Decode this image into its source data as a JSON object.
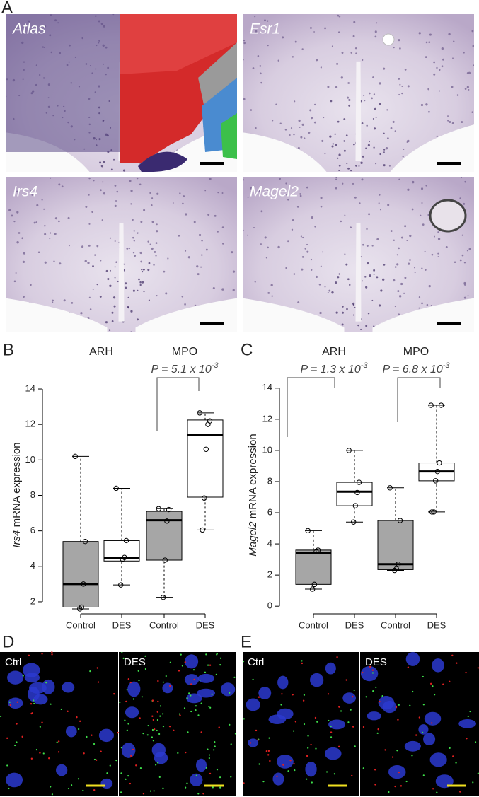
{
  "panel_letters": [
    "A",
    "B",
    "C",
    "D",
    "E"
  ],
  "histology": [
    {
      "label": "Atlas"
    },
    {
      "label": "Esr1"
    },
    {
      "label": "Irs4"
    },
    {
      "label": "Magel2"
    }
  ],
  "fluorescence": [
    {
      "labels": [
        "Ctrl",
        "DES"
      ]
    },
    {
      "labels": [
        "Ctrl",
        "DES"
      ]
    }
  ],
  "chart_data": [
    {
      "type": "box",
      "ylabel_gene": "Irs4",
      "ylabel": "mRNA expression",
      "groups": [
        "ARH",
        "MPO"
      ],
      "categories": [
        "Control",
        "DES",
        "Control",
        "DES"
      ],
      "series": [
        {
          "box": [
            1.6,
            1.7,
            3.0,
            5.4,
            10.2
          ],
          "points": [
            10.2,
            5.4,
            3.0,
            1.7,
            1.6
          ]
        },
        {
          "box": [
            2.95,
            4.3,
            4.45,
            5.45,
            8.4
          ],
          "points": [
            8.4,
            5.45,
            4.5,
            4.4,
            2.95
          ]
        },
        {
          "box": [
            2.25,
            4.35,
            6.6,
            7.1,
            7.25
          ],
          "points": [
            7.25,
            7.2,
            6.55,
            4.35,
            2.25
          ]
        },
        {
          "box": [
            6.05,
            7.9,
            11.4,
            12.25,
            12.65
          ],
          "points": [
            12.65,
            12.2,
            12.0,
            10.6,
            7.85,
            6.05
          ]
        }
      ],
      "ylim": [
        1.4,
        14.4
      ],
      "yticks": [
        2,
        4,
        6,
        8,
        10,
        12,
        14
      ],
      "box_color": [
        "#a6a6a6",
        "#ffffff",
        "#a6a6a6",
        "#ffffff"
      ],
      "annotations": [
        {
          "text": "P = 5.1 x 10",
          "exponent": "-3"
        }
      ]
    },
    {
      "type": "box",
      "ylabel_gene": "Magel2",
      "ylabel": "mRNA expression",
      "groups": [
        "ARH",
        "MPO"
      ],
      "categories": [
        "Control",
        "DES",
        "Control",
        "DES"
      ],
      "series": [
        {
          "box": [
            1.1,
            1.4,
            3.4,
            3.6,
            4.85
          ],
          "points": [
            4.85,
            3.6,
            3.5,
            1.4,
            1.1
          ]
        },
        {
          "box": [
            5.4,
            6.45,
            7.35,
            7.95,
            10.0
          ],
          "points": [
            10.0,
            7.95,
            7.3,
            6.45,
            5.4
          ]
        },
        {
          "box": [
            2.3,
            2.35,
            2.7,
            5.5,
            7.6
          ],
          "points": [
            7.6,
            5.5,
            2.7,
            2.4,
            2.3
          ]
        },
        {
          "box": [
            6.05,
            8.05,
            8.65,
            9.2,
            12.9
          ],
          "points": [
            12.9,
            12.9,
            9.2,
            8.65,
            8.05,
            6.05,
            6.05
          ]
        }
      ],
      "ylim": [
        -0.4,
        14.4
      ],
      "yticks": [
        0,
        2,
        4,
        6,
        8,
        10,
        12,
        14
      ],
      "box_color": [
        "#a6a6a6",
        "#ffffff",
        "#a6a6a6",
        "#ffffff"
      ],
      "annotations": [
        {
          "text": "P = 1.3 x 10",
          "exponent": "-3"
        },
        {
          "text": "P = 6.8 x 10",
          "exponent": "-3"
        }
      ]
    }
  ]
}
